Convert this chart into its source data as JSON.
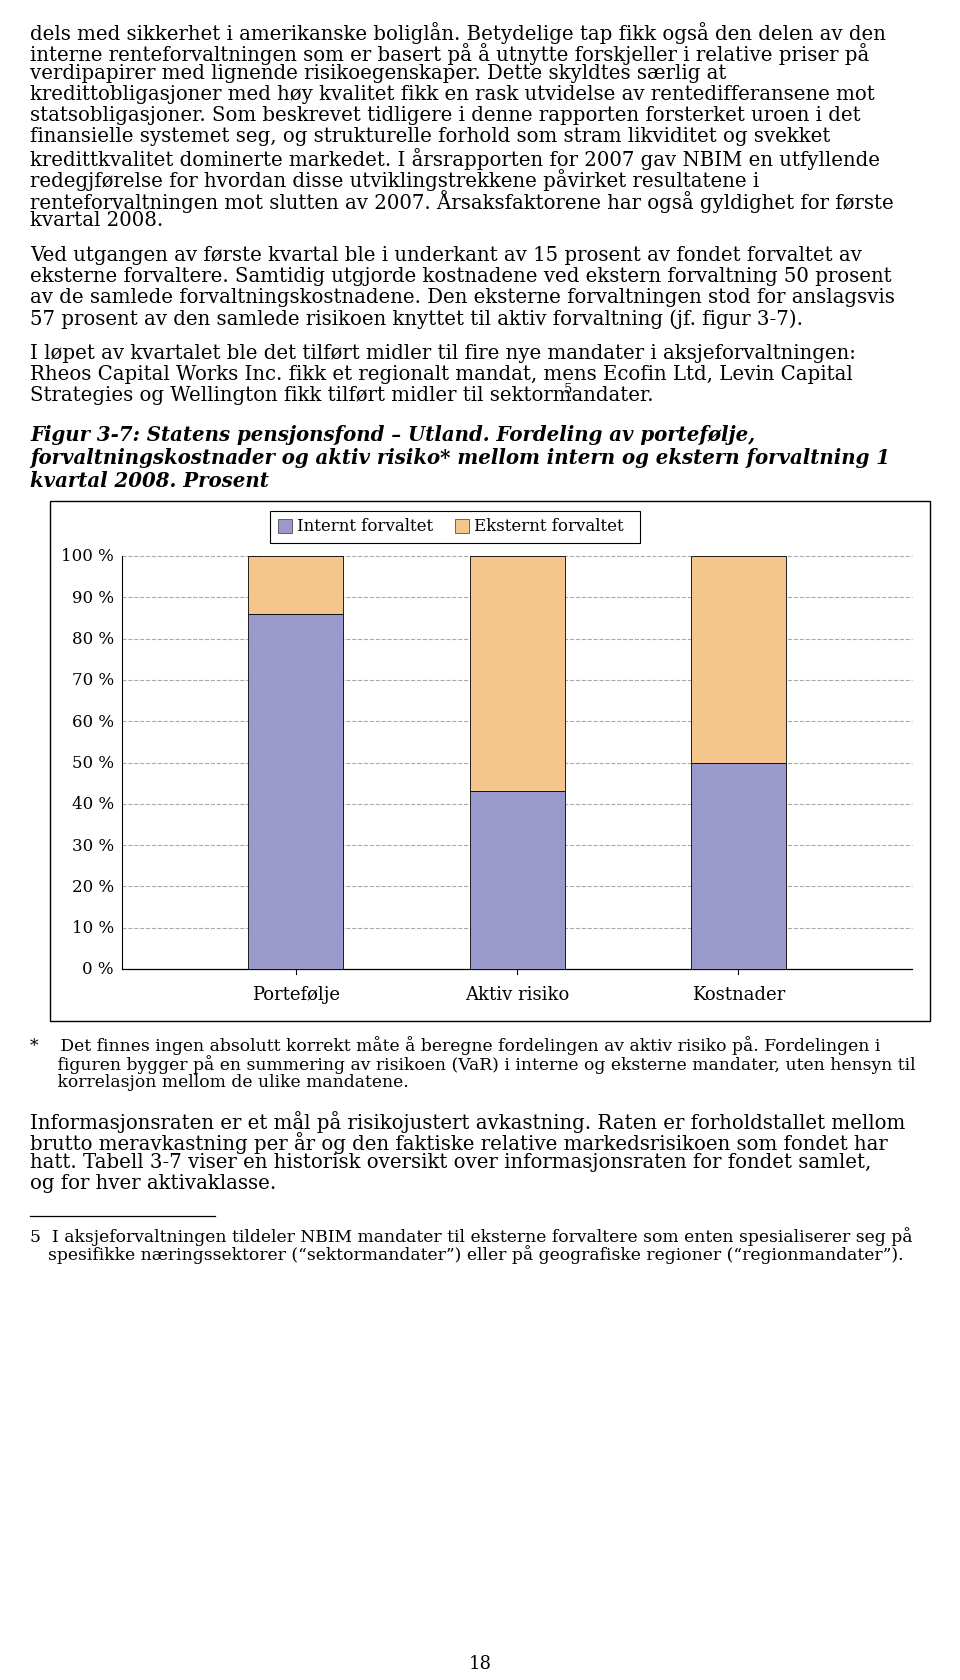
{
  "categories": [
    "Portefølje",
    "Aktiv risiko",
    "Kostnader"
  ],
  "intern": [
    86,
    43,
    50
  ],
  "ekstern": [
    14,
    57,
    50
  ],
  "color_intern": "#9999cc",
  "color_ekstern": "#f4c68c",
  "legend_intern": "Internt forvaltet",
  "legend_ekstern": "Eksternt forvaltet",
  "yticks": [
    0,
    10,
    20,
    30,
    40,
    50,
    60,
    70,
    80,
    90,
    100
  ],
  "page_number": "18",
  "para1_lines": [
    "dels med sikkerhet i amerikanske boliglån. Betydelige tap fikk også den delen av den",
    "interne renteforvaltningen som er basert på å utnytte forskjeller i relative priser på",
    "verdipapirer med lignende risikoegenskaper. Dette skyldtes særlig at",
    "kredittobligasjoner med høy kvalitet fikk en rask utvidelse av rentedifferansene mot",
    "statsobligasjoner. Som beskrevet tidligere i denne rapporten forsterket uroen i det",
    "finansielle systemet seg, og strukturelle forhold som stram likviditet og svekket",
    "kredittkvalitet dominerte markedet. I årsrapporten for 2007 gav NBIM en utfyllende",
    "redegjførelse for hvordan disse utviklingstrekkene påvirket resultatene i",
    "renteforvaltningen mot slutten av 2007. Årsaksfaktorene har også gyldighet for første",
    "kvartal 2008."
  ],
  "para2_lines": [
    "Ved utgangen av første kvartal ble i underkant av 15 prosent av fondet forvaltet av",
    "eksterne forvaltere. Samtidig utgjorde kostnadene ved ekstern forvaltning 50 prosent",
    "av de samlede forvaltningskostnadene. Den eksterne forvaltningen stod for anslagsvis",
    "57 prosent av den samlede risikoen knyttet til aktiv forvaltning (jf. figur 3-7)."
  ],
  "para3_lines": [
    "I løpet av kvartalet ble det tilført midler til fire nye mandater i aksjeforvaltningen:",
    "Rheos Capital Works Inc. fikk et regionalt mandat, mens Ecofin Ltd, Levin Capital",
    "Strategies og Wellington fikk tilført midler til sektormandater."
  ],
  "caption_lines": [
    "Figur 3-7: Statens pensjonsfond – Utland. Fordeling av portefølje,",
    "forvaltningskostnader og aktiv risiko* mellom intern og ekstern forvaltning 1",
    "kvartal 2008. Prosent"
  ],
  "footnote_lines": [
    "*    Det finnes ingen absolutt korrekt måte å beregne fordelingen av aktiv risiko på. Fordelingen i",
    "     figuren bygger på en summering av risikoen (VaR) i interne og eksterne mandater, uten hensyn til",
    "     korrelasjon mellom de ulike mandatene."
  ],
  "para4_lines": [
    "Informasjonsraten er et mål på risikojustert avkastning. Raten er forholdstallet mellom",
    "brutto meravkastning per år og den faktiske relative markedsrisikoen som fondet har",
    "hatt. Tabell 3-7 viser en historisk oversikt over informasjonsraten for fondet samlet,",
    "og for hver aktivaklasse."
  ],
  "footnote5_line1": "5  I aksjeforvaltningen tildeler NBIM mandater til eksterne forvaltere som enten spesialiserer seg på",
  "footnote5_line2": "spesifikke næringssektorer (“sektormandater”) eller på geografiske regioner (“regionmandater”)."
}
